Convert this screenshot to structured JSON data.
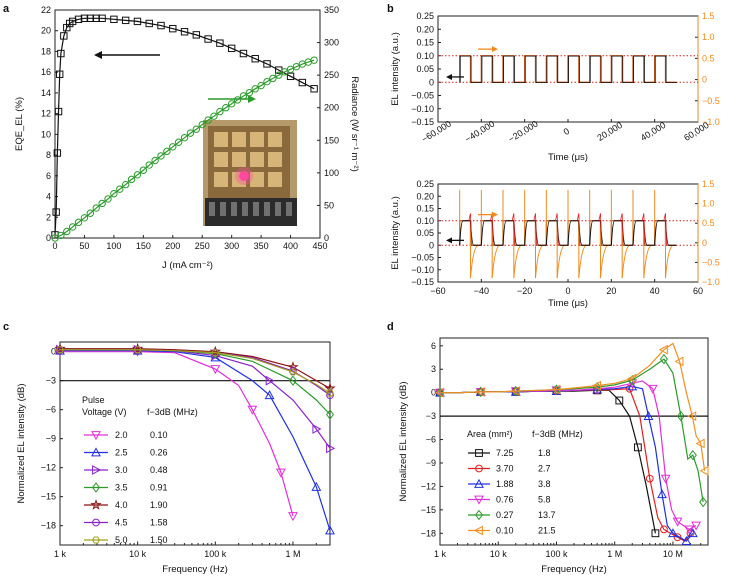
{
  "figure": {
    "panels": [
      "a",
      "b",
      "c",
      "d"
    ]
  },
  "colors": {
    "black": "#111111",
    "green": "#2a9a2a",
    "orange": "#f08a1c",
    "dark_orange": "#c4571a",
    "red": "#e02020",
    "red_dotted": "#d42020",
    "blue": "#2030e0",
    "magenta": "#e030d8",
    "purple": "#8a20c8",
    "dark_red": "#8b1010",
    "olive": "#a0a020",
    "orange_d": "#f09020",
    "pink_spot": "#ff4aa0"
  },
  "chart_data": [
    {
      "panel": "a",
      "type": "line",
      "xlabel": "J (mA cm⁻²)",
      "ylabel_left": "EQE_EL (%)",
      "ylabel_right": "Radiance (W sr⁻¹ m⁻²)",
      "xlim": [
        0,
        450
      ],
      "ylim_left": [
        0,
        22
      ],
      "ylim_right": [
        0,
        350
      ],
      "xticks": [
        0,
        50,
        100,
        150,
        200,
        250,
        300,
        350,
        400,
        450
      ],
      "yticks_left": [
        0,
        2,
        4,
        6,
        8,
        10,
        12,
        14,
        16,
        18,
        20,
        22
      ],
      "yticks_right": [
        0,
        50,
        100,
        150,
        200,
        250,
        300,
        350
      ],
      "inset": "photo of LED device with pink emission spot",
      "series": [
        {
          "name": "EQE",
          "axis": "left",
          "marker": "square",
          "color": "black",
          "x": [
            0,
            2,
            4,
            6,
            8,
            10,
            15,
            20,
            25,
            30,
            40,
            50,
            60,
            70,
            80,
            100,
            120,
            140,
            160,
            180,
            200,
            220,
            240,
            260,
            280,
            300,
            320,
            340,
            360,
            380,
            400,
            420,
            440
          ],
          "y": [
            0.3,
            2.5,
            8.2,
            12.2,
            15.8,
            17.8,
            19.5,
            20.3,
            20.7,
            20.9,
            21.1,
            21.2,
            21.2,
            21.2,
            21.2,
            21.1,
            21.0,
            20.9,
            20.7,
            20.5,
            20.2,
            19.9,
            19.6,
            19.2,
            18.8,
            18.3,
            17.8,
            17.3,
            16.8,
            16.2,
            15.6,
            15.0,
            14.4
          ]
        },
        {
          "name": "Radiance",
          "axis": "right",
          "marker": "circle",
          "color": "green",
          "x": [
            0,
            10,
            20,
            30,
            40,
            50,
            60,
            70,
            80,
            90,
            100,
            110,
            120,
            130,
            140,
            150,
            160,
            170,
            180,
            190,
            200,
            210,
            220,
            230,
            240,
            250,
            260,
            270,
            280,
            290,
            300,
            310,
            320,
            330,
            340,
            350,
            360,
            370,
            380,
            390,
            400,
            410,
            420,
            430,
            440
          ],
          "y": [
            0,
            4,
            10,
            17,
            24,
            31,
            38,
            46,
            53,
            60,
            68,
            75,
            82,
            90,
            97,
            104,
            112,
            119,
            126,
            133,
            140,
            147,
            154,
            161,
            167,
            174,
            181,
            187,
            194,
            200,
            206,
            212,
            218,
            223,
            229,
            234,
            240,
            245,
            250,
            255,
            259,
            263,
            267,
            270,
            273
          ]
        }
      ]
    },
    {
      "panel": "b-top",
      "type": "line",
      "xlabel": "Time (μs)",
      "ylabel_left": "EL intensity (a.u.)",
      "xlim": [
        -60000,
        60000
      ],
      "ylim_left": [
        -0.15,
        0.25
      ],
      "ylim_right": [
        -1.0,
        1.5
      ],
      "xticks": [
        -60000,
        -40000,
        -20000,
        0,
        20000,
        40000,
        60000
      ],
      "xtick_labels": [
        "−60,000",
        "−40,000",
        "−20,000",
        "0",
        "20,000",
        "40,000",
        "60,000"
      ],
      "yticks_left": [
        -0.15,
        -0.1,
        -0.05,
        0,
        0.05,
        0.1,
        0.15,
        0.2,
        0.25
      ],
      "ytick_labels_left": [
        "−0.15",
        "−0.10",
        "−0.05",
        "0",
        "0.05",
        "0.10",
        "0.15",
        "0.20",
        "0.25"
      ],
      "yticks_right": [
        -1.0,
        -0.5,
        0,
        0.5,
        1.0,
        1.5
      ],
      "ytick_labels_right": [
        "−1.0",
        "−0.5",
        "0",
        "0.5",
        "1.0",
        "1.5"
      ],
      "square_wave": {
        "start": -50000,
        "end": 50000,
        "period": 10000,
        "low": 0.0,
        "high": 0.1
      },
      "dotted_levels": [
        0.0,
        0.1
      ]
    },
    {
      "panel": "b-bottom",
      "type": "line",
      "xlabel": "Time (μs)",
      "ylabel_left": "EL intensity (a.u.)",
      "xlim": [
        -60,
        60
      ],
      "ylim_left": [
        -0.15,
        0.25
      ],
      "ylim_right": [
        -1.0,
        1.5
      ],
      "xticks": [
        -60,
        -40,
        -20,
        0,
        20,
        40,
        60
      ],
      "xtick_labels": [
        "−60",
        "−40",
        "−20",
        "0",
        "20",
        "40",
        "60"
      ],
      "yticks_left": [
        -0.15,
        -0.1,
        -0.05,
        0,
        0.05,
        0.1,
        0.15,
        0.2,
        0.25
      ],
      "ytick_labels_left": [
        "−0.15",
        "−0.10",
        "−0.05",
        "0",
        "0.05",
        "0.10",
        "0.15",
        "0.20",
        "0.25"
      ],
      "yticks_right": [
        -1.0,
        -0.5,
        0,
        0.5,
        1.0,
        1.5
      ],
      "ytick_labels_right": [
        "−1.0",
        "−0.5",
        "0",
        "0.5",
        "1.0",
        "1.5"
      ],
      "square_wave": {
        "start": -50,
        "end": 50,
        "period": 10,
        "low": 0.0,
        "high": 0.1
      },
      "dotted_levels": [
        0.0,
        0.1
      ]
    },
    {
      "panel": "c",
      "type": "line",
      "xlabel": "Frequency (Hz)",
      "ylabel": "Normalized EL intensity (dB)",
      "xscale": "log",
      "xlim": [
        1000,
        3000000
      ],
      "ylim": [
        -20,
        1
      ],
      "xticks": [
        1000,
        10000,
        100000,
        1000000
      ],
      "xtick_labels": [
        "1 k",
        "10 k",
        "100 k",
        "1 M"
      ],
      "yticks": [
        0,
        -3,
        -6,
        -9,
        -12,
        -15,
        -18
      ],
      "ytick_labels": [
        "0",
        "−3",
        "−6",
        "−9",
        "−12",
        "−15",
        "−18"
      ],
      "ref_line": -3,
      "legend_title": [
        "Pulse",
        "Voltage (V)"
      ],
      "legend_col2": "f−3dB (MHz)",
      "series": [
        {
          "name": "2.0",
          "f3db": "0.10",
          "color": "magenta",
          "marker": "tri-down",
          "x": [
            1000,
            3000,
            10000,
            30000,
            100000,
            200000,
            300000,
            500000,
            700000,
            1000000
          ],
          "y": [
            0,
            0,
            0,
            -0.1,
            -1.8,
            -3.5,
            -6,
            -9.5,
            -12.5,
            -17
          ]
        },
        {
          "name": "2.5",
          "f3db": "0.26",
          "color": "blue",
          "marker": "tri-up",
          "x": [
            1000,
            3000,
            10000,
            30000,
            100000,
            300000,
            500000,
            1000000,
            2000000,
            3000000
          ],
          "y": [
            0.1,
            0.1,
            0.1,
            0,
            -0.6,
            -3,
            -4.5,
            -8.8,
            -14,
            -18.5
          ]
        },
        {
          "name": "3.0",
          "f3db": "0.48",
          "color": "purple",
          "marker": "tri-right",
          "x": [
            1000,
            3000,
            10000,
            30000,
            100000,
            300000,
            500000,
            1000000,
            2000000,
            3000000
          ],
          "y": [
            0.2,
            0.2,
            0.2,
            0.1,
            -0.4,
            -1.5,
            -3,
            -5,
            -8,
            -10
          ]
        },
        {
          "name": "3.5",
          "f3db": "0.91",
          "color": "green",
          "marker": "diamond",
          "x": [
            1000,
            3000,
            10000,
            30000,
            100000,
            300000,
            1000000,
            2000000,
            3000000
          ],
          "y": [
            0.2,
            0.2,
            0.2,
            0.1,
            -0.2,
            -1,
            -3,
            -5,
            -6.5
          ]
        },
        {
          "name": "4.0",
          "f3db": "1.90",
          "color": "dark_red",
          "marker": "star",
          "x": [
            1000,
            3000,
            10000,
            30000,
            100000,
            300000,
            1000000,
            2000000,
            3000000
          ],
          "y": [
            0.3,
            0.3,
            0.3,
            0.2,
            0,
            -0.5,
            -1.6,
            -3,
            -3.8
          ]
        },
        {
          "name": "4.5",
          "f3db": "1.58",
          "color": "purple",
          "marker": "circle",
          "x": [
            1000,
            3000,
            10000,
            30000,
            100000,
            300000,
            1000000,
            2000000,
            3000000
          ],
          "y": [
            0.2,
            0.2,
            0.2,
            0.1,
            -0.1,
            -0.6,
            -2,
            -3.5,
            -4.5
          ]
        },
        {
          "name": "5.0",
          "f3db": "1.50",
          "color": "olive",
          "marker": "hexagon",
          "x": [
            1000,
            3000,
            10000,
            30000,
            100000,
            300000,
            1000000,
            2000000,
            3000000
          ],
          "y": [
            0.2,
            0.2,
            0.2,
            0.1,
            -0.1,
            -0.7,
            -2.1,
            -3.4,
            -4.3
          ]
        }
      ]
    },
    {
      "panel": "d",
      "type": "line",
      "xlabel": "Frequency (Hz)",
      "ylabel": "Normalized EL intensity (dB)",
      "xscale": "log",
      "xlim": [
        1000,
        40000000
      ],
      "ylim": [
        -19.5,
        7
      ],
      "xticks": [
        1000,
        10000,
        100000,
        1000000,
        10000000
      ],
      "xtick_labels": [
        "1 k",
        "10 k",
        "100 k",
        "1 M",
        "10 M"
      ],
      "yticks": [
        6,
        3,
        0,
        -3,
        -6,
        -9,
        -12,
        -15,
        -18
      ],
      "ytick_labels": [
        "6",
        "3",
        "0",
        "−3",
        "−6",
        "−9",
        "−12",
        "−15",
        "−18"
      ],
      "ref_line": -3,
      "legend_title": "Area (mm²)",
      "legend_col2": "f−3dB (MHz)",
      "series": [
        {
          "name": "7.25",
          "f3db": "1.8",
          "color": "black",
          "marker": "square",
          "x": [
            1000,
            2000,
            5000,
            10000,
            20000,
            50000,
            100000,
            200000,
            500000,
            800000,
            1200000,
            1800000,
            2500000,
            3500000,
            5000000
          ],
          "y": [
            0,
            0,
            0.1,
            0.1,
            0.1,
            0.2,
            0.2,
            0.2,
            0.3,
            0.3,
            -1,
            -3,
            -7,
            -12,
            -18
          ]
        },
        {
          "name": "3.70",
          "f3db": "2.7",
          "color": "red",
          "marker": "circle",
          "x": [
            1000,
            2000,
            5000,
            10000,
            20000,
            50000,
            100000,
            200000,
            500000,
            1000000,
            1800000,
            2700000,
            4000000,
            5500000,
            7000000,
            9000000,
            12000000,
            16000000,
            20000000
          ],
          "y": [
            0,
            0,
            0.1,
            0.1,
            0.1,
            0.2,
            0.2,
            0.3,
            0.3,
            0.4,
            0.5,
            -3,
            -11,
            -16,
            -17.5,
            -18,
            -18.5,
            -19,
            -18
          ]
        },
        {
          "name": "1.88",
          "f3db": "3.8",
          "color": "blue",
          "marker": "tri-up",
          "x": [
            1000,
            2000,
            5000,
            10000,
            20000,
            50000,
            100000,
            200000,
            500000,
            1000000,
            2000000,
            3000000,
            3800000,
            5000000,
            6500000,
            8000000,
            10000000,
            13000000,
            17000000,
            22000000
          ],
          "y": [
            0,
            0,
            0.1,
            0.1,
            0.1,
            0.2,
            0.2,
            0.3,
            0.4,
            0.5,
            0.8,
            0.5,
            -3,
            -7,
            -13,
            -17,
            -18,
            -18.5,
            -19,
            -18
          ]
        },
        {
          "name": "0.76",
          "f3db": "5.8",
          "color": "magenta",
          "marker": "tri-down",
          "x": [
            1000,
            2000,
            5000,
            10000,
            20000,
            50000,
            100000,
            200000,
            500000,
            1000000,
            2000000,
            3000000,
            4500000,
            5800000,
            7500000,
            9500000,
            12000000,
            15000000,
            19000000,
            25000000
          ],
          "y": [
            0,
            0,
            0.1,
            0.1,
            0.2,
            0.2,
            0.3,
            0.3,
            0.5,
            0.7,
            1.2,
            1.5,
            0.5,
            -3,
            -11,
            -15,
            -16.5,
            -17,
            -17.5,
            -17
          ]
        },
        {
          "name": "0.27",
          "f3db": "13.7",
          "color": "green",
          "marker": "diamond",
          "x": [
            1000,
            2000,
            5000,
            10000,
            20000,
            50000,
            100000,
            200000,
            500000,
            1000000,
            2000000,
            4000000,
            7000000,
            10000000,
            13700000,
            18000000,
            22000000,
            27000000,
            33000000
          ],
          "y": [
            0,
            0,
            0.1,
            0.1,
            0.2,
            0.3,
            0.4,
            0.5,
            0.7,
            1.0,
            1.6,
            3,
            4.3,
            2.5,
            -3,
            -8.5,
            -8,
            -10,
            -14
          ]
        },
        {
          "name": "0.10",
          "f3db": "21.5",
          "color": "orange_d",
          "marker": "tri-left",
          "x": [
            1000,
            2000,
            5000,
            10000,
            20000,
            50000,
            100000,
            200000,
            500000,
            1000000,
            2000000,
            4000000,
            7000000,
            10000000,
            13000000,
            17000000,
            21500000,
            25000000,
            30000000,
            35000000
          ],
          "y": [
            0,
            0,
            0.1,
            0.1,
            0.2,
            0.3,
            0.4,
            0.6,
            0.9,
            1.2,
            1.8,
            3.5,
            5.5,
            6.3,
            4,
            0,
            -3,
            -5.5,
            -6.5,
            -10
          ]
        }
      ]
    }
  ]
}
